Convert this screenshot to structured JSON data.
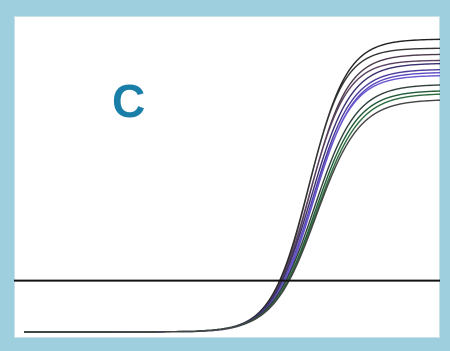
{
  "panel_label": "C",
  "colors": {
    "frame": "#9ecfdf",
    "plot_background": "#ffffff",
    "label": "#1a7fa8",
    "threshold": "#111111"
  },
  "chart_data": {
    "type": "line",
    "title": "",
    "xlabel": "",
    "ylabel": "",
    "x_ticks_shown": false,
    "y_ticks_shown": false,
    "grid": false,
    "legend": "none",
    "xlim": [
      0,
      40
    ],
    "ylim": [
      0,
      1
    ],
    "threshold": 0.17,
    "curve_model": "sigmoid",
    "series": [
      {
        "color": "#222222",
        "baseline": 0.0,
        "plateau": 0.97,
        "midpoint": 27.4,
        "slope": 1.0
      },
      {
        "color": "#333333",
        "baseline": 0.0,
        "plateau": 0.94,
        "midpoint": 27.3,
        "slope": 1.05
      },
      {
        "color": "#4b3a4a",
        "baseline": 0.0,
        "plateau": 0.92,
        "midpoint": 27.5,
        "slope": 1.0
      },
      {
        "color": "#5a4060",
        "baseline": 0.0,
        "plateau": 0.9,
        "midpoint": 27.4,
        "slope": 1.0
      },
      {
        "color": "#3a2f6e",
        "baseline": 0.0,
        "plateau": 0.89,
        "midpoint": 27.6,
        "slope": 0.95
      },
      {
        "color": "#4a3a9a",
        "baseline": 0.0,
        "plateau": 0.87,
        "midpoint": 27.7,
        "slope": 0.95
      },
      {
        "color": "#5b4cc2",
        "baseline": 0.0,
        "plateau": 0.86,
        "midpoint": 27.8,
        "slope": 0.95
      },
      {
        "color": "#6a58d0",
        "baseline": 0.0,
        "plateau": 0.85,
        "midpoint": 27.7,
        "slope": 0.95
      },
      {
        "color": "#2f3f3a",
        "baseline": 0.0,
        "plateau": 0.82,
        "midpoint": 27.9,
        "slope": 0.9
      },
      {
        "color": "#1f5a35",
        "baseline": 0.0,
        "plateau": 0.8,
        "midpoint": 28.0,
        "slope": 0.9
      },
      {
        "color": "#2e6b3f",
        "baseline": 0.0,
        "plateau": 0.79,
        "midpoint": 28.1,
        "slope": 0.88
      },
      {
        "color": "#444444",
        "baseline": 0.0,
        "plateau": 0.77,
        "midpoint": 28.1,
        "slope": 0.88
      }
    ]
  }
}
